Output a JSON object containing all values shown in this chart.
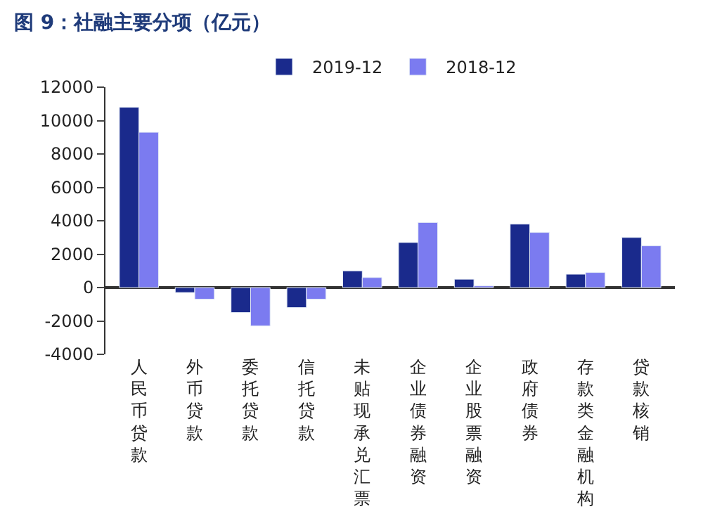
{
  "chart_data": {
    "type": "bar",
    "title": "图 9：社融主要分项（亿元）",
    "categories": [
      "人民币贷款",
      "外币贷款",
      "委托贷款",
      "信托贷款",
      "未贴现承兑汇票",
      "企业债券融资",
      "企业股票融资",
      "政府债券",
      "存款类金融机构",
      "贷款核销"
    ],
    "series": [
      {
        "name": "2019-12",
        "color": "#1a2a8c",
        "values": [
          10800,
          -300,
          -1500,
          -1200,
          1000,
          2700,
          500,
          3800,
          800,
          3000
        ]
      },
      {
        "name": "2018-12",
        "color": "#7b7bf0",
        "values": [
          9300,
          -700,
          -2300,
          -700,
          600,
          3900,
          100,
          3300,
          900,
          2500
        ]
      }
    ],
    "ylim": [
      -4000,
      12000
    ],
    "yticks": [
      -4000,
      -2000,
      0,
      2000,
      4000,
      6000,
      8000,
      10000,
      12000
    ],
    "legend": "top"
  }
}
